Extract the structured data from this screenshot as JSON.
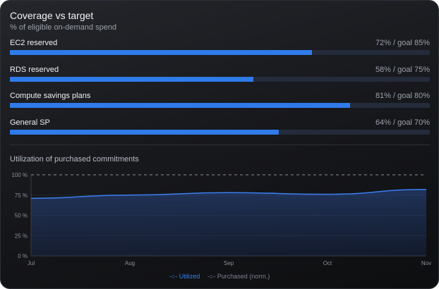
{
  "card": {
    "title": "Coverage vs target",
    "subtitle": "% of eligible on-demand spend"
  },
  "rows": [
    {
      "label": "EC2 reserved",
      "value_text": "72% / goal 85%",
      "percent": 72,
      "goal": 85
    },
    {
      "label": "RDS reserved",
      "value_text": "58% / goal 75%",
      "percent": 58,
      "goal": 75
    },
    {
      "label": "Compute savings plans",
      "value_text": "81% / goal 80%",
      "percent": 81,
      "goal": 80
    },
    {
      "label": "General SP",
      "value_text": "64% / goal 70%",
      "percent": 64,
      "goal": 70
    }
  ],
  "colors": {
    "accent": "#2f7bea",
    "track": "#242b3b",
    "purchased": "#8a8f99"
  },
  "chart_data": {
    "type": "area",
    "title": "Utilization of purchased commitments",
    "categories": [
      "Jul",
      "Aug",
      "Sep",
      "Oct",
      "Nov"
    ],
    "ytick_labels": [
      "0 %",
      "25 %",
      "50 %",
      "75 %",
      "100 %"
    ],
    "ylim": [
      0,
      100
    ],
    "grid": true,
    "legend_position": "bottom",
    "series": [
      {
        "name": "Utilized",
        "values": [
          71,
          75,
          78,
          76,
          82
        ],
        "color": "#3b7ff0"
      },
      {
        "name": "Purchased (norm.)",
        "values": [
          100,
          100,
          100,
          100,
          100
        ],
        "color": "#8a8f99",
        "dashed": true
      }
    ]
  }
}
